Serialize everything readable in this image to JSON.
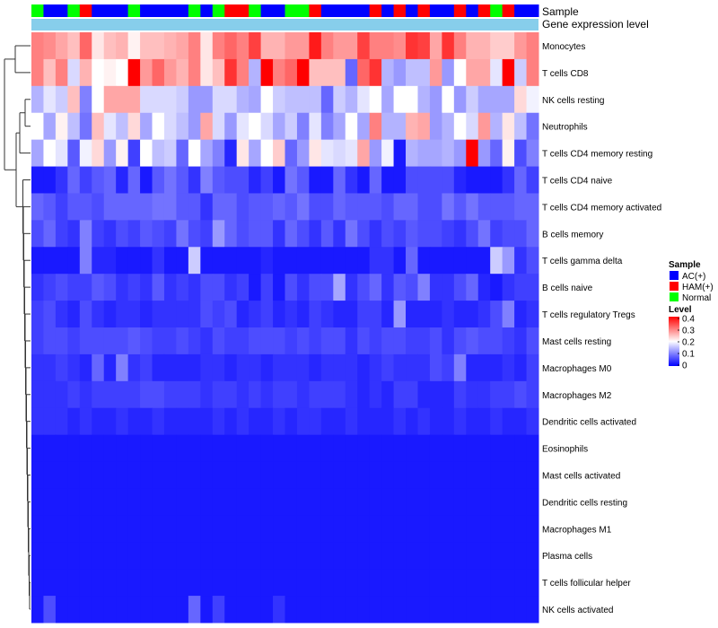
{
  "chart_data": {
    "type": "heatmap",
    "annotation_labels": {
      "sample": "Sample",
      "expression": "Gene expression level"
    },
    "legend": {
      "sample_title": "Sample",
      "level_title": "Level",
      "groups": [
        {
          "name": "AC(+)",
          "color": "#0000ff"
        },
        {
          "name": "HAM(+)",
          "color": "#ff0000"
        },
        {
          "name": "Normal",
          "color": "#00ff00"
        }
      ],
      "level_ticks": [
        "0.4",
        "0.3",
        "0.2",
        "0.1",
        "0"
      ]
    },
    "color_scale": {
      "min": 0,
      "mid": 0.2,
      "max": 0.4,
      "low": "#0000ff",
      "midColor": "#ffffff",
      "high": "#ff0000"
    },
    "expression_color": "#87ceeb",
    "sample_groups": [
      "Normal",
      "AC(+)",
      "AC(+)",
      "Normal",
      "HAM(+)",
      "AC(+)",
      "AC(+)",
      "AC(+)",
      "Normal",
      "AC(+)",
      "AC(+)",
      "AC(+)",
      "AC(+)",
      "Normal",
      "AC(+)",
      "Normal",
      "HAM(+)",
      "HAM(+)",
      "Normal",
      "AC(+)",
      "AC(+)",
      "Normal",
      "Normal",
      "HAM(+)",
      "AC(+)",
      "AC(+)",
      "AC(+)",
      "AC(+)",
      "HAM(+)",
      "AC(+)",
      "HAM(+)",
      "AC(+)",
      "HAM(+)",
      "AC(+)",
      "AC(+)",
      "HAM(+)",
      "AC(+)",
      "HAM(+)",
      "Normal",
      "HAM(+)",
      "AC(+)",
      "AC(+)"
    ],
    "rows": [
      {
        "name": "Monocytes",
        "values": [
          0.3,
          0.29,
          0.27,
          0.25,
          0.32,
          0.22,
          0.25,
          0.26,
          0.21,
          0.25,
          0.25,
          0.26,
          0.27,
          0.3,
          0.22,
          0.3,
          0.32,
          0.3,
          0.35,
          0.26,
          0.26,
          0.28,
          0.28,
          0.38,
          0.3,
          0.28,
          0.28,
          0.35,
          0.3,
          0.3,
          0.29,
          0.36,
          0.35,
          0.27,
          0.36,
          0.3,
          0.26,
          0.26,
          0.24,
          0.24,
          0.28,
          0.3
        ]
      },
      {
        "name": "T cells CD8",
        "values": [
          0.3,
          0.25,
          0.3,
          0.17,
          0.26,
          0.2,
          0.21,
          0.2,
          0.4,
          0.28,
          0.32,
          0.28,
          0.26,
          0.3,
          0.22,
          0.25,
          0.36,
          0.3,
          0.14,
          0.42,
          0.3,
          0.32,
          0.4,
          0.25,
          0.25,
          0.25,
          0.08,
          0.32,
          0.36,
          0.14,
          0.12,
          0.15,
          0.15,
          0.28,
          0.12,
          0.2,
          0.27,
          0.27,
          0.18,
          0.4,
          0.16,
          0.3
        ]
      },
      {
        "name": "NK cells resting",
        "values": [
          0.14,
          0.18,
          0.16,
          0.25,
          0.1,
          0.2,
          0.27,
          0.27,
          0.27,
          0.17,
          0.17,
          0.17,
          0.16,
          0.12,
          0.12,
          0.17,
          0.17,
          0.14,
          0.13,
          0.2,
          0.16,
          0.15,
          0.15,
          0.15,
          0.08,
          0.16,
          0.14,
          0.18,
          0.2,
          0.13,
          0.2,
          0.2,
          0.14,
          0.12,
          0.2,
          0.12,
          0.16,
          0.13,
          0.13,
          0.13,
          0.23,
          0.19
        ]
      },
      {
        "name": "Neutrophils",
        "values": [
          0.2,
          0.13,
          0.21,
          0.15,
          0.09,
          0.25,
          0.18,
          0.15,
          0.23,
          0.13,
          0.2,
          0.17,
          0.15,
          0.12,
          0.27,
          0.17,
          0.12,
          0.18,
          0.2,
          0.17,
          0.13,
          0.16,
          0.1,
          0.18,
          0.1,
          0.13,
          0.2,
          0.13,
          0.3,
          0.14,
          0.14,
          0.26,
          0.27,
          0.12,
          0.14,
          0.2,
          0.17,
          0.28,
          0.14,
          0.22,
          0.15,
          0.09
        ]
      },
      {
        "name": "T cells CD4 memory resting",
        "values": [
          0.13,
          0.2,
          0.18,
          0.07,
          0.19,
          0.23,
          0.12,
          0.21,
          0.05,
          0.2,
          0.15,
          0.16,
          0.08,
          0.2,
          0.13,
          0.1,
          0.03,
          0.22,
          0.13,
          0.2,
          0.24,
          0.08,
          0.12,
          0.22,
          0.18,
          0.17,
          0.18,
          0.27,
          0.12,
          0.19,
          0.02,
          0.14,
          0.13,
          0.13,
          0.14,
          0.12,
          0.4,
          0.12,
          0.08,
          0.21,
          0.06,
          0.1
        ]
      },
      {
        "name": "T cells CD4 naive",
        "values": [
          0.02,
          0.02,
          0.04,
          0.08,
          0.05,
          0.07,
          0.08,
          0.03,
          0.08,
          0.02,
          0.07,
          0.09,
          0.07,
          0.04,
          0.1,
          0.07,
          0.06,
          0.06,
          0.03,
          0.05,
          0.02,
          0.09,
          0.07,
          0.02,
          0.02,
          0.08,
          0.04,
          0.02,
          0.08,
          0.02,
          0.02,
          0.06,
          0.06,
          0.06,
          0.06,
          0.03,
          0.02,
          0.02,
          0.02,
          0.04,
          0.08,
          0.05
        ]
      },
      {
        "name": "T cells CD4 memory activated",
        "values": [
          0.08,
          0.07,
          0.05,
          0.07,
          0.07,
          0.06,
          0.08,
          0.08,
          0.08,
          0.08,
          0.09,
          0.09,
          0.07,
          0.07,
          0.04,
          0.08,
          0.08,
          0.06,
          0.07,
          0.07,
          0.08,
          0.07,
          0.09,
          0.06,
          0.06,
          0.08,
          0.07,
          0.07,
          0.07,
          0.06,
          0.08,
          0.08,
          0.06,
          0.06,
          0.09,
          0.07,
          0.09,
          0.07,
          0.07,
          0.07,
          0.08,
          0.08
        ]
      },
      {
        "name": "B cells memory",
        "values": [
          0.06,
          0.08,
          0.05,
          0.04,
          0.1,
          0.05,
          0.04,
          0.06,
          0.05,
          0.07,
          0.06,
          0.05,
          0.09,
          0.06,
          0.05,
          0.12,
          0.08,
          0.06,
          0.07,
          0.07,
          0.04,
          0.08,
          0.06,
          0.04,
          0.07,
          0.04,
          0.09,
          0.06,
          0.04,
          0.06,
          0.05,
          0.07,
          0.06,
          0.06,
          0.05,
          0.04,
          0.06,
          0.09,
          0.05,
          0.06,
          0.06,
          0.08
        ]
      },
      {
        "name": "T cells gamma delta",
        "values": [
          0.02,
          0.02,
          0.02,
          0.02,
          0.1,
          0.03,
          0.03,
          0.02,
          0.02,
          0.02,
          0.04,
          0.02,
          0.02,
          0.16,
          0.02,
          0.02,
          0.02,
          0.02,
          0.02,
          0.03,
          0.02,
          0.02,
          0.02,
          0.02,
          0.02,
          0.02,
          0.02,
          0.02,
          0.04,
          0.04,
          0.02,
          0.08,
          0.02,
          0.02,
          0.02,
          0.02,
          0.02,
          0.02,
          0.16,
          0.12,
          0.04,
          0.06
        ]
      },
      {
        "name": "B cells naive",
        "values": [
          0.04,
          0.05,
          0.06,
          0.05,
          0.05,
          0.07,
          0.06,
          0.04,
          0.05,
          0.04,
          0.07,
          0.04,
          0.05,
          0.04,
          0.06,
          0.06,
          0.04,
          0.05,
          0.02,
          0.05,
          0.02,
          0.06,
          0.04,
          0.06,
          0.06,
          0.13,
          0.04,
          0.06,
          0.08,
          0.04,
          0.07,
          0.06,
          0.1,
          0.04,
          0.04,
          0.06,
          0.08,
          0.03,
          0.02,
          0.04,
          0.05,
          0.05
        ]
      },
      {
        "name": "T cells regulatory  Tregs",
        "values": [
          0.05,
          0.06,
          0.04,
          0.03,
          0.06,
          0.04,
          0.03,
          0.04,
          0.04,
          0.03,
          0.04,
          0.04,
          0.04,
          0.04,
          0.06,
          0.05,
          0.06,
          0.03,
          0.04,
          0.05,
          0.03,
          0.04,
          0.03,
          0.05,
          0.04,
          0.03,
          0.03,
          0.05,
          0.05,
          0.03,
          0.12,
          0.03,
          0.03,
          0.03,
          0.04,
          0.03,
          0.03,
          0.04,
          0.06,
          0.1,
          0.03,
          0.04
        ]
      },
      {
        "name": "Mast cells resting",
        "values": [
          0.05,
          0.06,
          0.06,
          0.05,
          0.06,
          0.06,
          0.06,
          0.06,
          0.07,
          0.06,
          0.05,
          0.05,
          0.06,
          0.05,
          0.04,
          0.06,
          0.05,
          0.05,
          0.06,
          0.06,
          0.06,
          0.05,
          0.06,
          0.05,
          0.06,
          0.06,
          0.04,
          0.06,
          0.05,
          0.06,
          0.06,
          0.05,
          0.05,
          0.06,
          0.04,
          0.06,
          0.07,
          0.06,
          0.06,
          0.05,
          0.04,
          0.06
        ]
      },
      {
        "name": "Macrophages M0",
        "values": [
          0.04,
          0.04,
          0.05,
          0.04,
          0.03,
          0.08,
          0.03,
          0.1,
          0.04,
          0.05,
          0.03,
          0.03,
          0.03,
          0.03,
          0.04,
          0.04,
          0.03,
          0.04,
          0.04,
          0.03,
          0.04,
          0.04,
          0.04,
          0.03,
          0.04,
          0.04,
          0.04,
          0.03,
          0.04,
          0.05,
          0.04,
          0.04,
          0.04,
          0.06,
          0.05,
          0.1,
          0.03,
          0.03,
          0.03,
          0.04,
          0.03,
          0.05
        ]
      },
      {
        "name": "Macrophages M2",
        "values": [
          0.04,
          0.04,
          0.04,
          0.05,
          0.04,
          0.05,
          0.05,
          0.05,
          0.05,
          0.06,
          0.06,
          0.05,
          0.05,
          0.05,
          0.04,
          0.05,
          0.05,
          0.04,
          0.05,
          0.04,
          0.05,
          0.05,
          0.04,
          0.05,
          0.05,
          0.05,
          0.04,
          0.03,
          0.04,
          0.03,
          0.05,
          0.05,
          0.03,
          0.03,
          0.03,
          0.05,
          0.04,
          0.04,
          0.05,
          0.05,
          0.06,
          0.05
        ]
      },
      {
        "name": "Dendritic cells activated",
        "values": [
          0.04,
          0.04,
          0.04,
          0.03,
          0.04,
          0.03,
          0.03,
          0.04,
          0.03,
          0.03,
          0.04,
          0.03,
          0.03,
          0.03,
          0.03,
          0.04,
          0.03,
          0.04,
          0.03,
          0.03,
          0.04,
          0.03,
          0.04,
          0.04,
          0.03,
          0.03,
          0.04,
          0.03,
          0.03,
          0.03,
          0.04,
          0.03,
          0.04,
          0.03,
          0.03,
          0.04,
          0.03,
          0.03,
          0.04,
          0.03,
          0.03,
          0.04
        ]
      },
      {
        "name": "Eosinophils",
        "values": [
          0.02,
          0.02,
          0.02,
          0.02,
          0.02,
          0.02,
          0.02,
          0.02,
          0.02,
          0.02,
          0.02,
          0.02,
          0.02,
          0.02,
          0.02,
          0.02,
          0.02,
          0.02,
          0.02,
          0.02,
          0.02,
          0.02,
          0.02,
          0.02,
          0.02,
          0.02,
          0.02,
          0.02,
          0.02,
          0.02,
          0.02,
          0.02,
          0.02,
          0.02,
          0.02,
          0.02,
          0.02,
          0.02,
          0.02,
          0.02,
          0.02,
          0.02
        ]
      },
      {
        "name": "Mast cells activated",
        "values": [
          0.02,
          0.02,
          0.02,
          0.02,
          0.02,
          0.02,
          0.02,
          0.02,
          0.02,
          0.02,
          0.02,
          0.02,
          0.02,
          0.02,
          0.02,
          0.02,
          0.02,
          0.02,
          0.02,
          0.02,
          0.02,
          0.02,
          0.02,
          0.02,
          0.02,
          0.02,
          0.02,
          0.02,
          0.02,
          0.02,
          0.02,
          0.02,
          0.02,
          0.02,
          0.02,
          0.02,
          0.02,
          0.02,
          0.02,
          0.02,
          0.02,
          0.02
        ]
      },
      {
        "name": "Dendritic cells resting",
        "values": [
          0.02,
          0.02,
          0.02,
          0.02,
          0.02,
          0.02,
          0.02,
          0.02,
          0.02,
          0.02,
          0.02,
          0.02,
          0.02,
          0.02,
          0.02,
          0.02,
          0.02,
          0.02,
          0.02,
          0.02,
          0.02,
          0.02,
          0.02,
          0.02,
          0.02,
          0.02,
          0.02,
          0.02,
          0.02,
          0.02,
          0.02,
          0.02,
          0.02,
          0.02,
          0.02,
          0.02,
          0.02,
          0.02,
          0.02,
          0.02,
          0.02,
          0.02
        ]
      },
      {
        "name": "Macrophages M1",
        "values": [
          0.02,
          0.02,
          0.02,
          0.02,
          0.02,
          0.02,
          0.02,
          0.02,
          0.02,
          0.02,
          0.02,
          0.02,
          0.02,
          0.02,
          0.02,
          0.02,
          0.02,
          0.02,
          0.02,
          0.02,
          0.02,
          0.02,
          0.02,
          0.02,
          0.02,
          0.02,
          0.02,
          0.02,
          0.02,
          0.02,
          0.02,
          0.02,
          0.02,
          0.02,
          0.02,
          0.02,
          0.02,
          0.02,
          0.02,
          0.02,
          0.02,
          0.02
        ]
      },
      {
        "name": "Plasma cells",
        "values": [
          0.02,
          0.02,
          0.02,
          0.02,
          0.02,
          0.02,
          0.02,
          0.02,
          0.02,
          0.02,
          0.02,
          0.02,
          0.02,
          0.02,
          0.02,
          0.02,
          0.02,
          0.02,
          0.02,
          0.02,
          0.02,
          0.02,
          0.02,
          0.02,
          0.02,
          0.02,
          0.02,
          0.02,
          0.02,
          0.02,
          0.02,
          0.02,
          0.02,
          0.02,
          0.02,
          0.02,
          0.02,
          0.02,
          0.02,
          0.02,
          0.02,
          0.02
        ]
      },
      {
        "name": "T cells follicular helper",
        "values": [
          0.02,
          0.02,
          0.02,
          0.02,
          0.02,
          0.02,
          0.02,
          0.02,
          0.02,
          0.02,
          0.02,
          0.02,
          0.02,
          0.02,
          0.02,
          0.02,
          0.02,
          0.02,
          0.02,
          0.02,
          0.02,
          0.02,
          0.02,
          0.02,
          0.02,
          0.02,
          0.02,
          0.02,
          0.02,
          0.02,
          0.02,
          0.02,
          0.02,
          0.02,
          0.02,
          0.02,
          0.02,
          0.02,
          0.02,
          0.02,
          0.02,
          0.02
        ]
      },
      {
        "name": "NK cells activated",
        "values": [
          0.02,
          0.06,
          0.02,
          0.02,
          0.02,
          0.02,
          0.02,
          0.02,
          0.02,
          0.02,
          0.02,
          0.02,
          0.02,
          0.08,
          0.02,
          0.05,
          0.02,
          0.02,
          0.02,
          0.02,
          0.04,
          0.02,
          0.02,
          0.02,
          0.02,
          0.02,
          0.02,
          0.02,
          0.02,
          0.02,
          0.02,
          0.02,
          0.02,
          0.02,
          0.02,
          0.02,
          0.02,
          0.02,
          0.02,
          0.02,
          0.02,
          0.02
        ]
      }
    ]
  }
}
